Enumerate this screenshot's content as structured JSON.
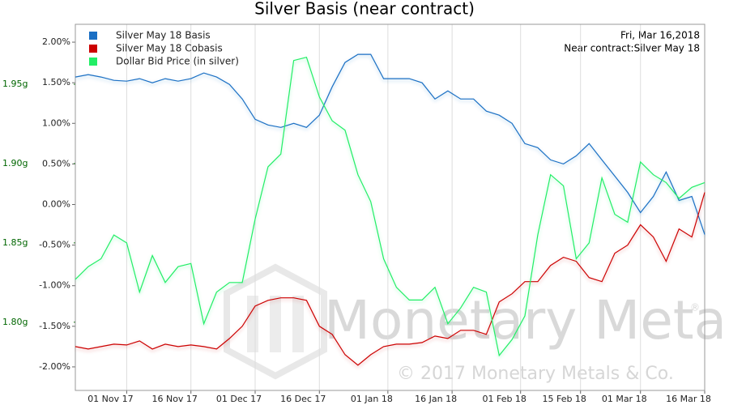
{
  "chart_data": {
    "type": "line",
    "title": "Silver Basis (near contract)",
    "annotations": [
      "Fri, Mar 16,2018",
      "Near contract:Silver May 18"
    ],
    "watermark": [
      "Monetary Metals",
      "® ",
      "© 2017 Monetary Metals & Co."
    ],
    "x": [
      "2017-10-20",
      "2017-10-23",
      "2017-10-26",
      "2017-10-29",
      "2017-11-01",
      "2017-11-04",
      "2017-11-07",
      "2017-11-10",
      "2017-11-13",
      "2017-11-16",
      "2017-11-19",
      "2017-11-22",
      "2017-11-25",
      "2017-11-28",
      "2017-12-01",
      "2017-12-04",
      "2017-12-07",
      "2017-12-10",
      "2017-12-13",
      "2017-12-16",
      "2017-12-19",
      "2017-12-22",
      "2017-12-25",
      "2017-12-28",
      "2017-12-31",
      "2018-01-03",
      "2018-01-06",
      "2018-01-09",
      "2018-01-12",
      "2018-01-15",
      "2018-01-18",
      "2018-01-21",
      "2018-01-24",
      "2018-01-27",
      "2018-01-30",
      "2018-02-02",
      "2018-02-05",
      "2018-02-08",
      "2018-02-11",
      "2018-02-14",
      "2018-02-17",
      "2018-02-20",
      "2018-02-23",
      "2018-02-26",
      "2018-03-01",
      "2018-03-04",
      "2018-03-07",
      "2018-03-10",
      "2018-03-13",
      "2018-03-16"
    ],
    "series": [
      {
        "name": "Silver May 18 Basis",
        "color": "#1a6fc4",
        "values": [
          1.57,
          1.6,
          1.57,
          1.53,
          1.52,
          1.55,
          1.5,
          1.55,
          1.52,
          1.55,
          1.62,
          1.57,
          1.48,
          1.3,
          1.05,
          0.98,
          0.95,
          1.0,
          0.95,
          1.1,
          1.45,
          1.75,
          1.85,
          1.85,
          1.55,
          1.55,
          1.55,
          1.5,
          1.3,
          1.4,
          1.3,
          1.3,
          1.15,
          1.1,
          1.0,
          0.75,
          0.7,
          0.55,
          0.5,
          0.6,
          0.75,
          0.55,
          0.35,
          0.15,
          -0.1,
          0.1,
          0.4,
          0.05,
          0.1,
          -0.37
        ]
      },
      {
        "name": "Silver May 18 Cobasis",
        "color": "#cc0000",
        "values": [
          -1.75,
          -1.78,
          -1.75,
          -1.72,
          -1.73,
          -1.68,
          -1.78,
          -1.72,
          -1.75,
          -1.73,
          -1.75,
          -1.78,
          -1.65,
          -1.5,
          -1.25,
          -1.18,
          -1.15,
          -1.15,
          -1.18,
          -1.5,
          -1.6,
          -1.85,
          -1.98,
          -1.85,
          -1.75,
          -1.72,
          -1.72,
          -1.7,
          -1.62,
          -1.65,
          -1.55,
          -1.55,
          -1.6,
          -1.2,
          -1.1,
          -0.95,
          -0.95,
          -0.75,
          -0.65,
          -0.7,
          -0.9,
          -0.95,
          -0.6,
          -0.5,
          -0.25,
          -0.4,
          -0.7,
          -0.3,
          -0.4,
          0.15
        ]
      },
      {
        "name": "Dollar Bid Price (in silver)",
        "color": "#22ee66",
        "axis": "y2",
        "values": [
          1.827,
          1.835,
          1.84,
          1.855,
          1.85,
          1.819,
          1.842,
          1.825,
          1.835,
          1.837,
          1.799,
          1.819,
          1.825,
          1.825,
          1.865,
          1.898,
          1.906,
          1.965,
          1.967,
          1.942,
          1.927,
          1.921,
          1.893,
          1.876,
          1.84,
          1.822,
          1.814,
          1.814,
          1.822,
          1.799,
          1.809,
          1.822,
          1.819,
          1.779,
          1.789,
          1.804,
          1.855,
          1.893,
          1.886,
          1.84,
          1.85,
          1.891,
          1.868,
          1.863,
          1.901,
          1.893,
          1.888,
          1.878,
          1.885,
          1.888
        ]
      }
    ],
    "xlim": [
      "2017-10-20",
      "2018-03-16"
    ],
    "xticks": [
      {
        "value": "2017-11-01",
        "label": "01 Nov 17"
      },
      {
        "value": "2017-11-16",
        "label": "16 Nov 17"
      },
      {
        "value": "2017-12-01",
        "label": "01 Dec 17"
      },
      {
        "value": "2017-12-16",
        "label": "16 Dec 17"
      },
      {
        "value": "2018-01-01",
        "label": "01 Jan 18"
      },
      {
        "value": "2018-01-16",
        "label": "16 Jan 18"
      },
      {
        "value": "2018-02-01",
        "label": "01 Feb 18"
      },
      {
        "value": "2018-02-15",
        "label": "15 Feb 18"
      },
      {
        "value": "2018-03-01",
        "label": "01 Mar 18"
      },
      {
        "value": "2018-03-16",
        "label": "16 Mar 18"
      }
    ],
    "ylim": [
      -2.29,
      2.22
    ],
    "yticks": [
      {
        "value": 2,
        "label": "2.00%"
      },
      {
        "value": 1.5,
        "label": "1.50%"
      },
      {
        "value": 1,
        "label": "1.00%"
      },
      {
        "value": 0.5,
        "label": "0.50%"
      },
      {
        "value": 0,
        "label": "0.00%"
      },
      {
        "value": -0.5,
        "label": "-0.50%"
      },
      {
        "value": -1,
        "label": "-1.00%"
      },
      {
        "value": -1.5,
        "label": "-1.50%"
      },
      {
        "value": -2,
        "label": "-2.00%"
      }
    ],
    "y2lim": [
      1.757,
      1.9878
    ],
    "y2ticks": [
      {
        "value": 1.95,
        "label": "1.95g"
      },
      {
        "value": 1.9,
        "label": "1.90g"
      },
      {
        "value": 1.85,
        "label": "1.85g"
      },
      {
        "value": 1.8,
        "label": "1.80g"
      }
    ],
    "y2color": "#006600",
    "grid": "x",
    "legend": "upper left"
  }
}
